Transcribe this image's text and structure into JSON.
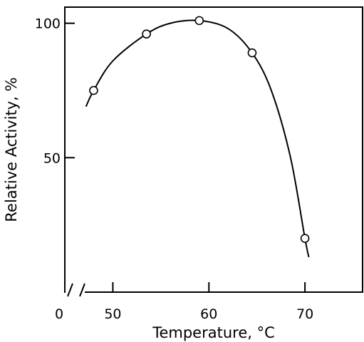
{
  "chart_data": {
    "type": "scatter",
    "xlabel": "Temperature, °C",
    "ylabel": "Relative Activity, %",
    "x_origin_label": "0",
    "x_axis_break": true,
    "xlim": [
      45,
      76
    ],
    "ylim": [
      0,
      106
    ],
    "x_ticks": [
      50,
      60,
      70
    ],
    "y_ticks": [
      50,
      100
    ],
    "series": [
      {
        "points": [
          {
            "x": 48,
            "y": 75
          },
          {
            "x": 53.5,
            "y": 96
          },
          {
            "x": 59,
            "y": 101
          },
          {
            "x": 64.5,
            "y": 89
          },
          {
            "x": 70,
            "y": 20
          }
        ]
      }
    ],
    "fit_curve": [
      {
        "x": 47.2,
        "y": 69
      },
      {
        "x": 48,
        "y": 75
      },
      {
        "x": 50,
        "y": 86
      },
      {
        "x": 53.5,
        "y": 96
      },
      {
        "x": 56,
        "y": 100
      },
      {
        "x": 59,
        "y": 101
      },
      {
        "x": 62,
        "y": 98
      },
      {
        "x": 64.5,
        "y": 89
      },
      {
        "x": 66.5,
        "y": 75
      },
      {
        "x": 68.5,
        "y": 50
      },
      {
        "x": 70,
        "y": 20
      },
      {
        "x": 70.4,
        "y": 13
      }
    ],
    "grid": false,
    "legend": "none",
    "colors": {
      "line": "#000000",
      "background": "#ffffff"
    }
  }
}
